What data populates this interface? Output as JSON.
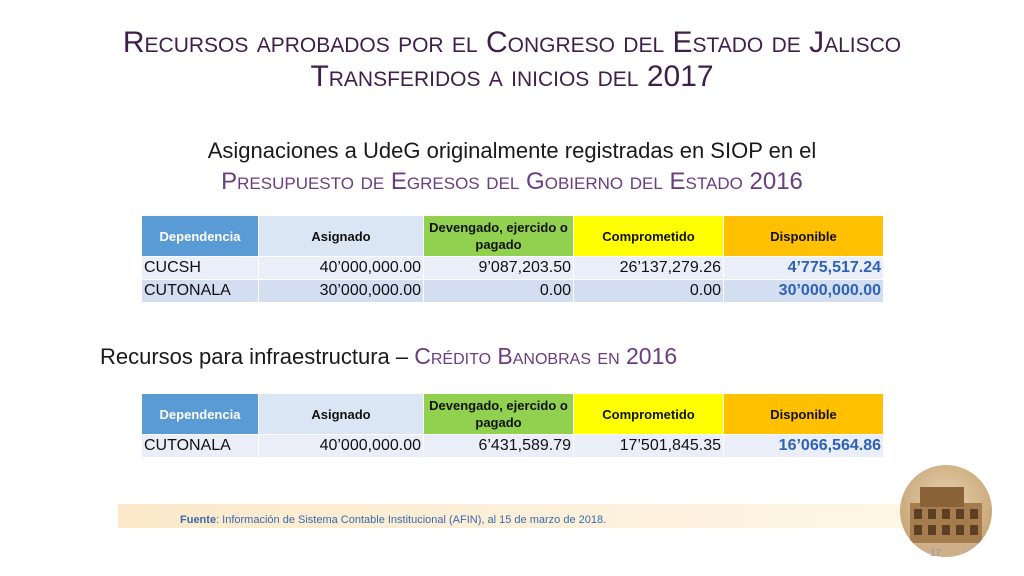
{
  "title": {
    "line1": "Recursos aprobados por el Congreso del Estado de Jalisco",
    "line2": "Transferidos a inicios del 2017"
  },
  "section1": {
    "line1": "Asignaciones a UdeG originalmente registradas en SIOP en el",
    "line2": "Presupuesto de Egresos del Gobierno del Estado 2016"
  },
  "table1": {
    "headers": [
      "Dependencia",
      "Asignado",
      "Devengado, ejercido o pagado",
      "Comprometido",
      "Disponible"
    ],
    "rows": [
      [
        "CUCSH",
        "40’000,000.00",
        "9’087,203.50",
        "26’137,279.26",
        "4’775,517.24"
      ],
      [
        "CUTONALA",
        "30’000,000.00",
        "0.00",
        "0.00",
        "30’000,000.00"
      ]
    ]
  },
  "section2": {
    "prefix": "Recursos para infraestructura – ",
    "accent": "Crédito Banobras en 2016"
  },
  "table2": {
    "headers": [
      "Dependencia",
      "Asignado",
      "Devengado, ejercido o pagado",
      "Comprometido",
      "Disponible"
    ],
    "rows": [
      [
        "CUTONALA",
        "40’000,000.00",
        "6’431,589.79",
        "17’501,845.35",
        "16’066,564.86"
      ]
    ]
  },
  "footer": {
    "label": "Fuente",
    "text": ": Información de Sistema Contable Institucional (AFIN), al 15 de marzo de 2018."
  },
  "page_number": "17",
  "colors": {
    "title": "#3d1f4a",
    "accent": "#6b3d80",
    "header_dependencia": "#5b9bd5",
    "header_devengado": "#92d050",
    "header_comprometido": "#ffff00",
    "header_disponible": "#ffc000",
    "disponible_text": "#2e62b4"
  }
}
